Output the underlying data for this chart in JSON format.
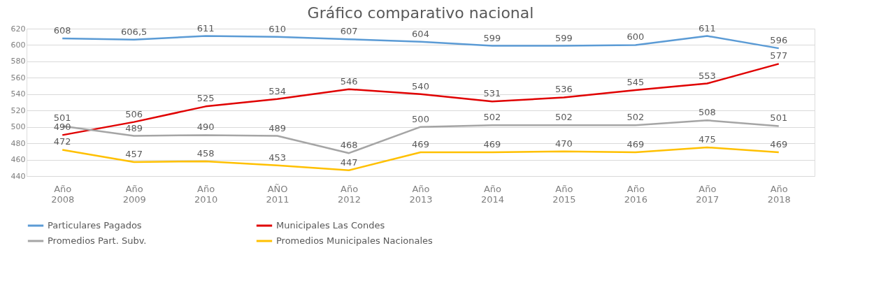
{
  "chart_data": {
    "type": "line",
    "title": "Gráfico comparativo nacional",
    "categories": [
      "Año 2008",
      "Año 2009",
      "Año 2010",
      "AÑO 2011",
      "Año 2012",
      "Año 2013",
      "Año 2014",
      "Año 2015",
      "Año 2016",
      "Año 2017",
      "Año 2018"
    ],
    "series": [
      {
        "name": "Particulares Pagados",
        "color": "#5b9bd5",
        "values": [
          608,
          606.5,
          611,
          610,
          607,
          604,
          599,
          599,
          600,
          611,
          596
        ],
        "value_labels": [
          "608",
          "606,5",
          "611",
          "610",
          "607",
          "604",
          "599",
          "599",
          "600",
          "611",
          "596"
        ]
      },
      {
        "name": "Municipales Las Condes",
        "color": "#e00000",
        "values": [
          490,
          506,
          525,
          534,
          546,
          540,
          531,
          536,
          545,
          553,
          577
        ],
        "value_labels": [
          "490",
          "506",
          "525",
          "534",
          "546",
          "540",
          "531",
          "536",
          "545",
          "553",
          "577"
        ]
      },
      {
        "name": "Promedios Part. Subv.",
        "color": "#a5a5a5",
        "values": [
          501,
          489,
          490,
          489,
          468,
          500,
          502,
          502,
          502,
          508,
          501
        ],
        "value_labels": [
          "501",
          "489",
          "490",
          "489",
          "468",
          "500",
          "502",
          "502",
          "502",
          "508",
          "501"
        ]
      },
      {
        "name": "Promedios Municipales Nacionales",
        "color": "#ffc000",
        "values": [
          472,
          457,
          458,
          453,
          447,
          469,
          469,
          470,
          469,
          475,
          469
        ],
        "value_labels": [
          "472",
          "457",
          "458",
          "453",
          "447",
          "469",
          "469",
          "470",
          "469",
          "475",
          "469"
        ]
      }
    ],
    "ylim": [
      440,
      620
    ],
    "yticks": [
      440,
      460,
      480,
      500,
      520,
      540,
      560,
      580,
      600,
      620
    ],
    "grid": "y",
    "legend": "bottom",
    "marker": "none",
    "line_style": "solid"
  }
}
